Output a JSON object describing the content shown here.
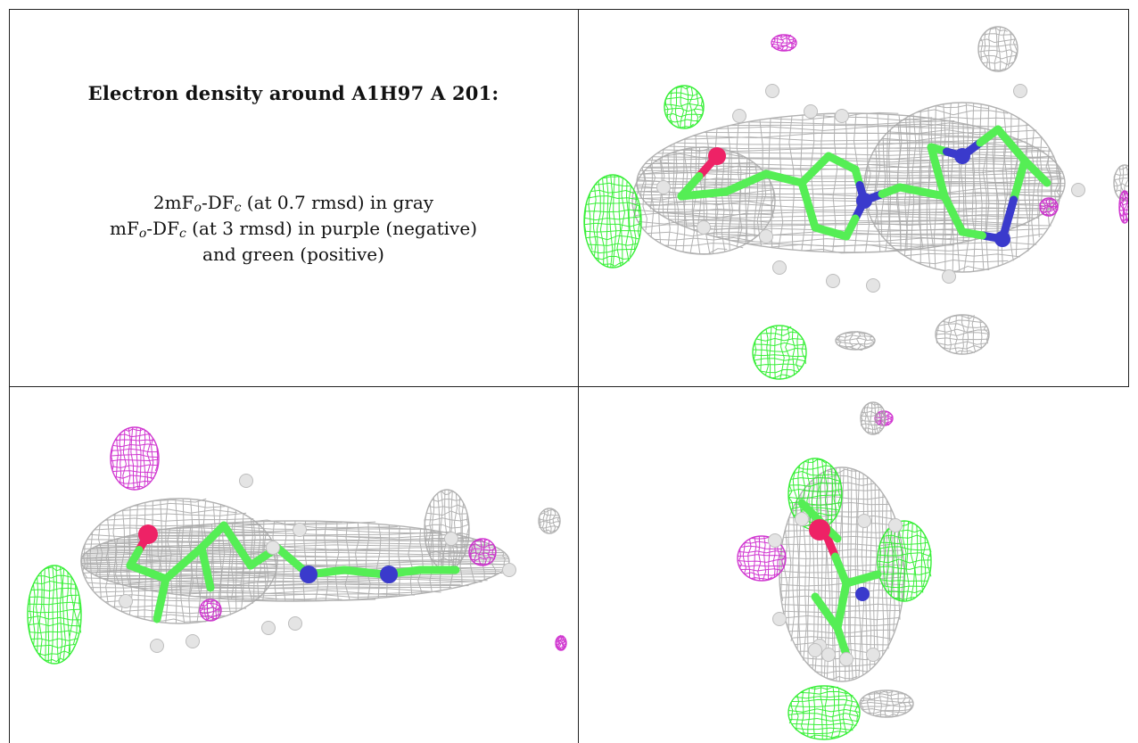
{
  "title": "Electron density around A1H97 A 201:",
  "legend": {
    "line1": {
      "a": "2mF",
      "a_sub": "o",
      "b": "-DF",
      "b_sub": "c",
      "c": " (at 0.7 rmsd) in gray"
    },
    "line2": {
      "a": "mF",
      "a_sub": "o",
      "b": "-DF",
      "b_sub": "c",
      "c": " (at 3 rmsd) in purple (negative)"
    },
    "line3": "and green (positive)"
  },
  "colors": {
    "mesh_2fofc": "#a9a9a9",
    "mesh_positive": "#22ee22",
    "mesh_negative": "#cc22cc",
    "carbon": "#55ee55",
    "nitrogen": "#3a3acc",
    "oxygen": "#ee2266",
    "hydrogen": "#e4e4e4"
  },
  "views": [
    {
      "name": "view-top-right"
    },
    {
      "name": "view-bottom-left"
    },
    {
      "name": "view-bottom-right"
    }
  ]
}
